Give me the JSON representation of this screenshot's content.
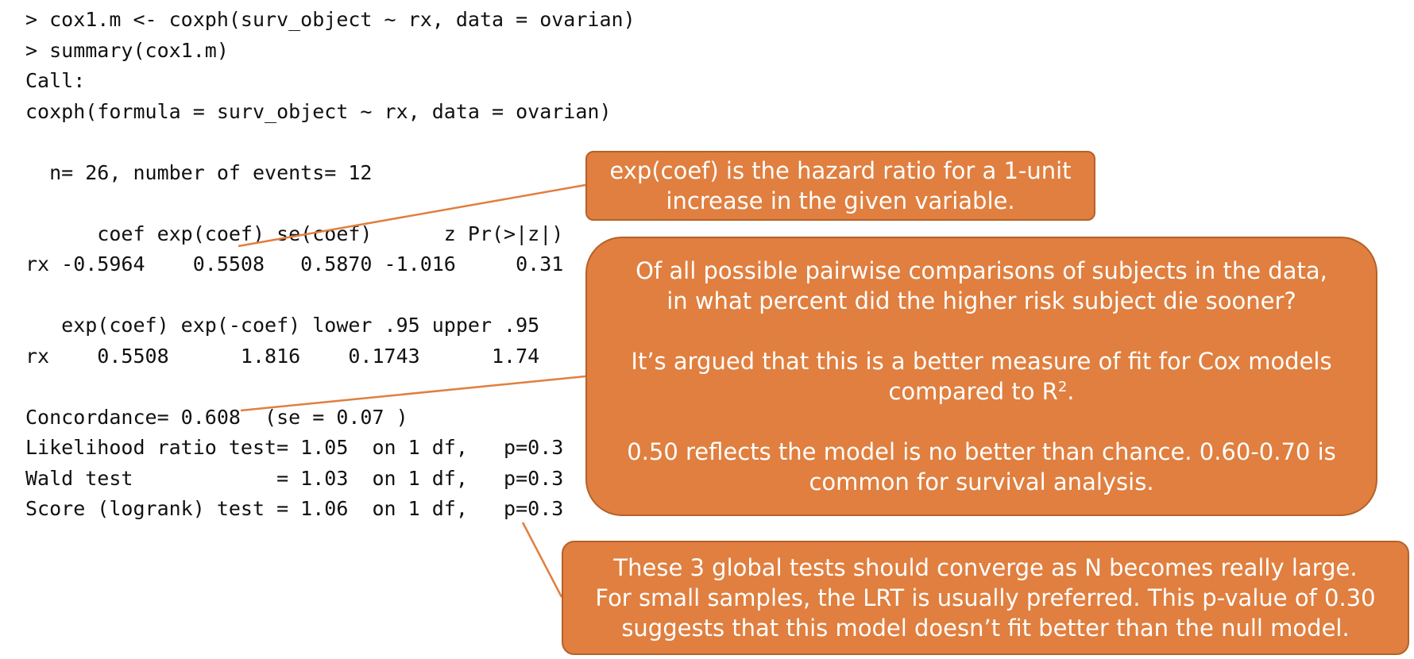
{
  "code_lines": [
    "> cox1.m <- coxph(surv_object ~ rx, data = ovarian)",
    "> summary(cox1.m)",
    "Call:",
    "coxph(formula = surv_object ~ rx, data = ovarian)",
    "",
    "  n= 26, number of events= 12",
    "",
    "      coef exp(coef) se(coef)      z Pr(>|z|)",
    "rx -0.5964    0.5508   0.5870 -1.016     0.31",
    "",
    "   exp(coef) exp(-coef) lower .95 upper .95",
    "rx    0.5508      1.816    0.1743      1.74",
    "",
    "Concordance= 0.608  (se = 0.07 )",
    "Likelihood ratio test= 1.05  on 1 df,   p=0.3",
    "Wald test            = 1.03  on 1 df,   p=0.3",
    "Score (logrank) test = 1.06  on 1 df,   p=0.3"
  ],
  "callouts": {
    "hazard_ratio": {
      "line1": "exp(coef) is the hazard ratio for a 1-unit",
      "line2": "increase in the given variable."
    },
    "concordance": {
      "line1": "Of all possible pairwise comparisons of subjects in the data,",
      "line2": "in what percent did the higher risk subject die sooner?",
      "line3": "It’s argued that this is a better measure of fit for Cox models",
      "line4_text": "compared to R",
      "line4_sup": "2",
      "line4_end": ".",
      "line5": "0.50 reflects the model is no better than chance. 0.60-0.70 is",
      "line6": "common for survival analysis."
    },
    "global_tests": {
      "line1": "These 3 global tests should converge as N becomes really large.",
      "line2": "For small samples, the LRT is usually preferred. This p-value of 0.30",
      "line3": "suggests that this model doesn’t fit better than the null model."
    }
  },
  "colors": {
    "callout_fill": "#e07f3f",
    "callout_border": "#b5612a",
    "connector": "#e07f3f",
    "code_text": "#111111"
  }
}
